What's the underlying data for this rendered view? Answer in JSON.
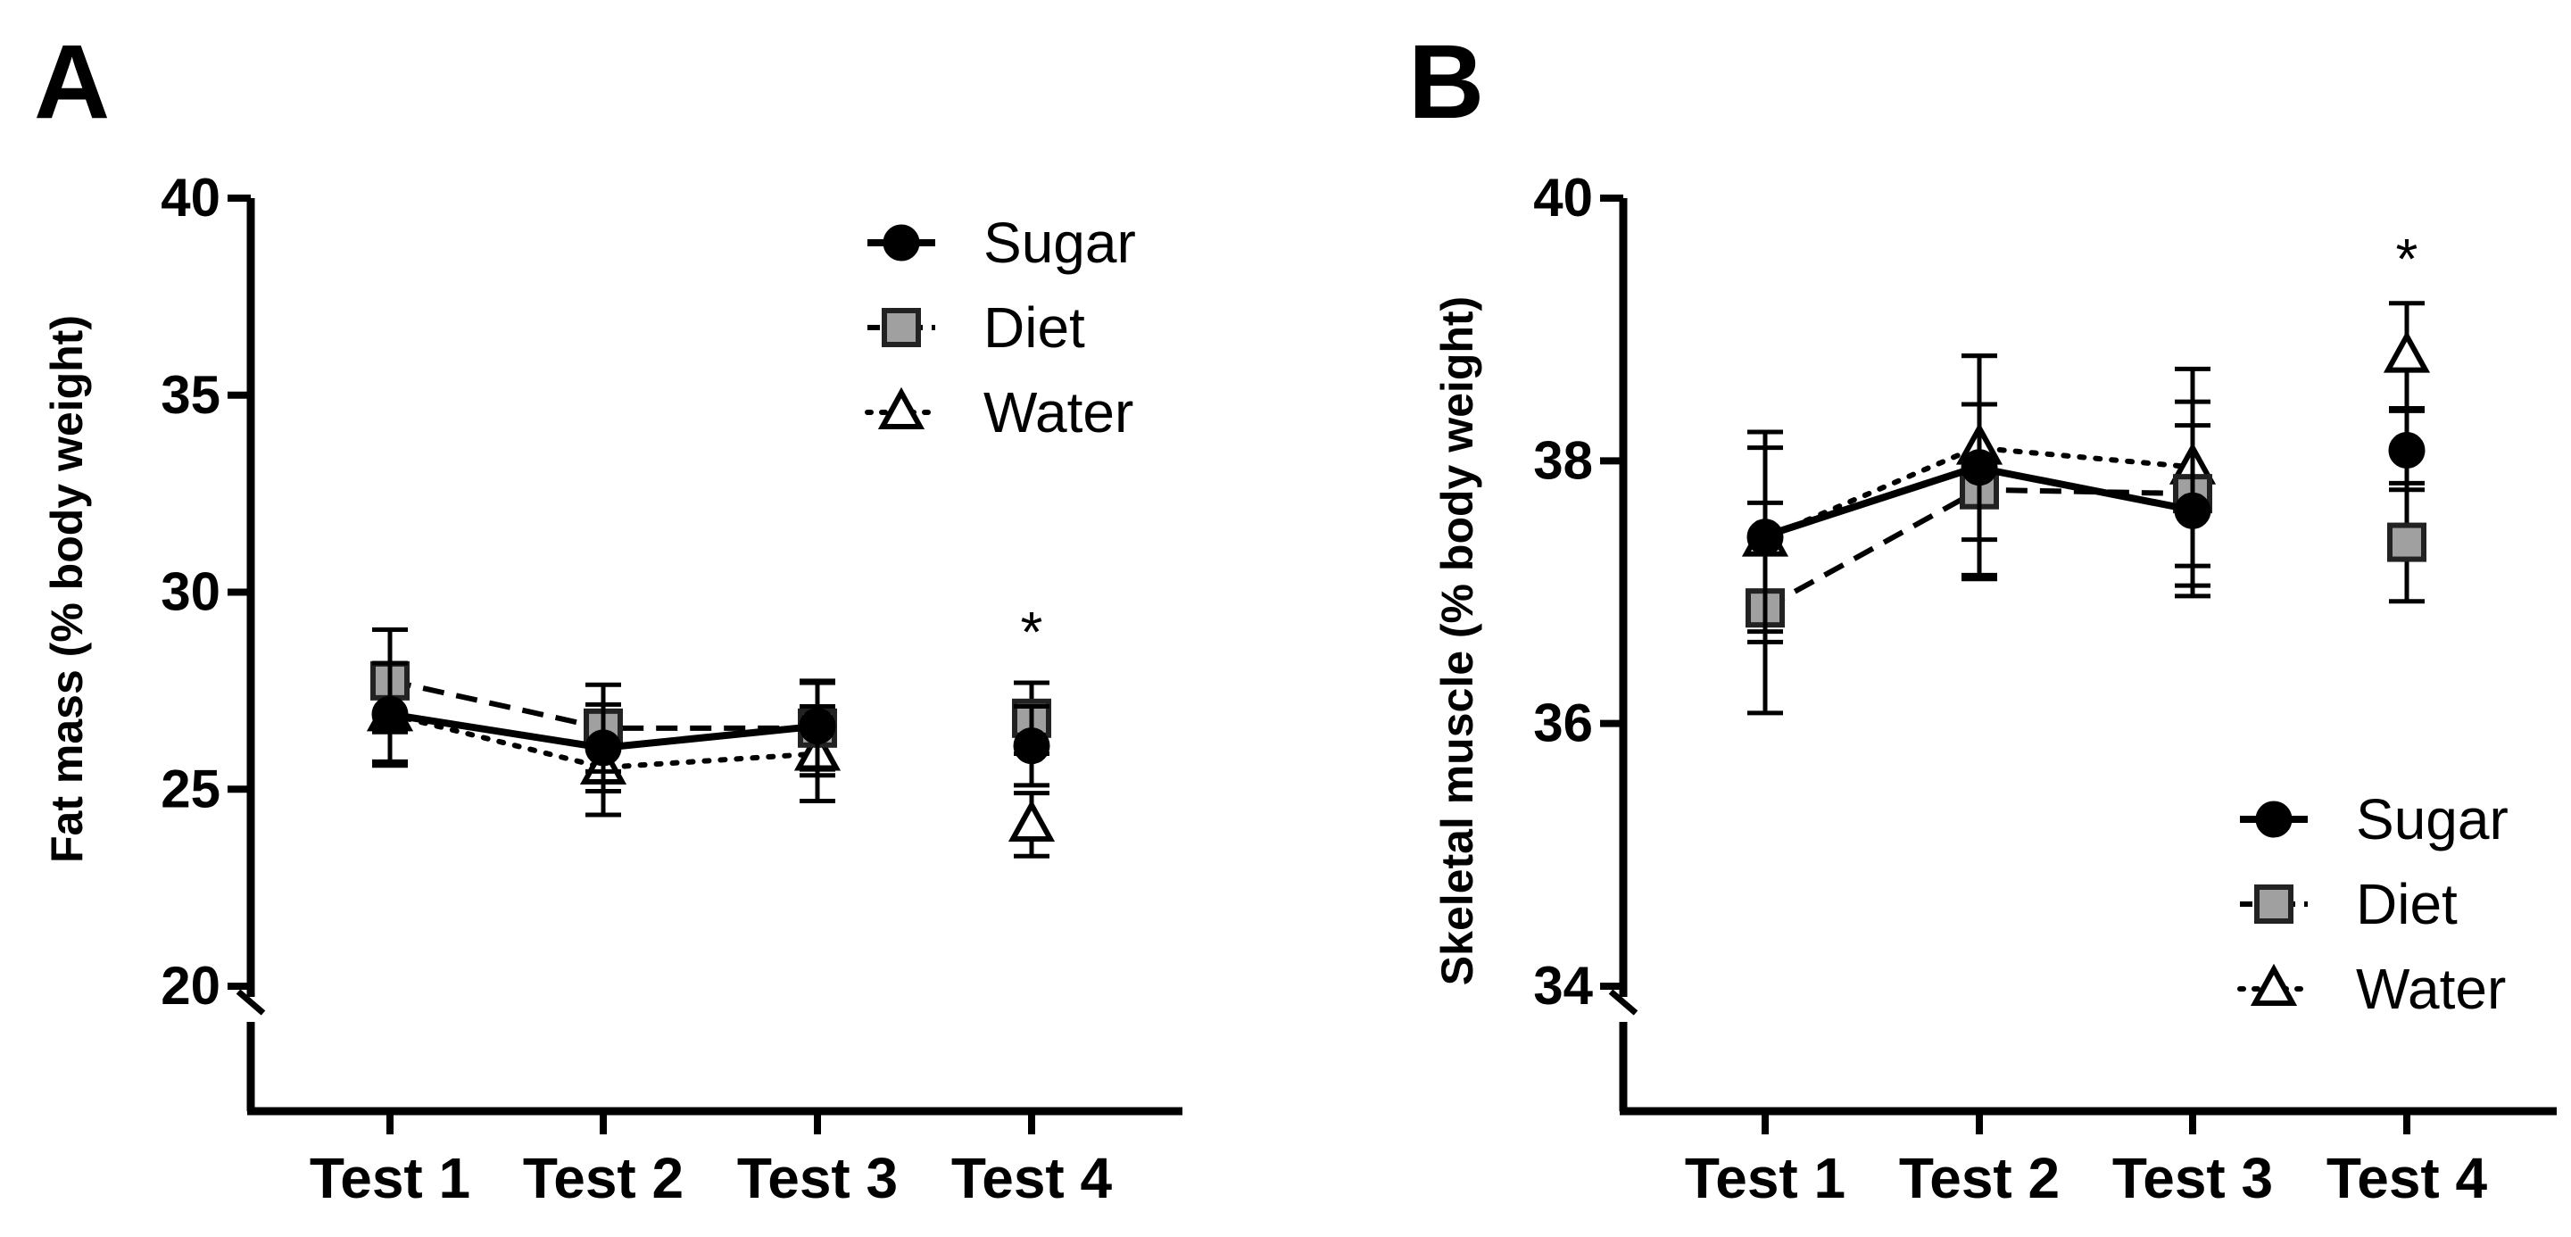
{
  "chart_data": [
    {
      "type": "line",
      "panel_label": "A",
      "title": "",
      "xlabel": "",
      "ylabel": "Fat mass (% body weight)",
      "categories": [
        "Test 1",
        "Test 2",
        "Test 3",
        "Test 4"
      ],
      "ylim": [
        20,
        40
      ],
      "yticks": [
        20,
        25,
        30,
        35,
        40
      ],
      "axis_break": true,
      "legend_position": "top-right",
      "annotations": [
        {
          "category": "Test 4",
          "text": "*"
        }
      ],
      "series": [
        {
          "name": "Sugar",
          "marker": "circle",
          "line": "solid",
          "color": "#000000",
          "values": [
            26.9,
            26.05,
            26.6,
            26.1
          ],
          "errors": [
            1.3,
            1.1,
            1.1,
            1.0
          ]
        },
        {
          "name": "Diet",
          "marker": "square",
          "line": "dashed",
          "color": "#a0a0a0",
          "values": [
            27.75,
            26.55,
            26.55,
            26.8
          ],
          "errors": [
            1.3,
            1.1,
            1.2,
            0.9
          ]
        },
        {
          "name": "Water",
          "marker": "triangle",
          "line": "dotted",
          "color": "#ffffff",
          "values": [
            26.9,
            25.55,
            25.9,
            24.1
          ],
          "errors": [
            1.2,
            1.2,
            1.2,
            0.8
          ]
        }
      ]
    },
    {
      "type": "line",
      "panel_label": "B",
      "title": "",
      "xlabel": "",
      "ylabel": "Skeletal muscle (% body weight)",
      "categories": [
        "Test 1",
        "Test 2",
        "Test 3",
        "Test 4"
      ],
      "ylim": [
        34,
        40
      ],
      "yticks": [
        34,
        36,
        38,
        40
      ],
      "axis_break": true,
      "legend_position": "bottom-right",
      "annotations": [
        {
          "category": "Test 4",
          "text": "*"
        }
      ],
      "series": [
        {
          "name": "Sugar",
          "marker": "circle",
          "line": "solid",
          "color": "#000000",
          "values": [
            37.42,
            37.95,
            37.62,
            38.08
          ],
          "errors": [
            0.8,
            0.85,
            0.65,
            0.3
          ]
        },
        {
          "name": "Diet",
          "marker": "square",
          "line": "dashed",
          "color": "#a0a0a0",
          "values": [
            36.88,
            37.78,
            37.75,
            37.38
          ],
          "errors": [
            0.8,
            0.65,
            0.7,
            0.45
          ]
        },
        {
          "name": "Water",
          "marker": "triangle",
          "line": "dotted",
          "color": "#ffffff",
          "values": [
            37.4,
            38.1,
            37.95,
            38.8
          ],
          "errors": [
            0.7,
            0.7,
            0.75,
            0.4
          ]
        }
      ]
    }
  ]
}
